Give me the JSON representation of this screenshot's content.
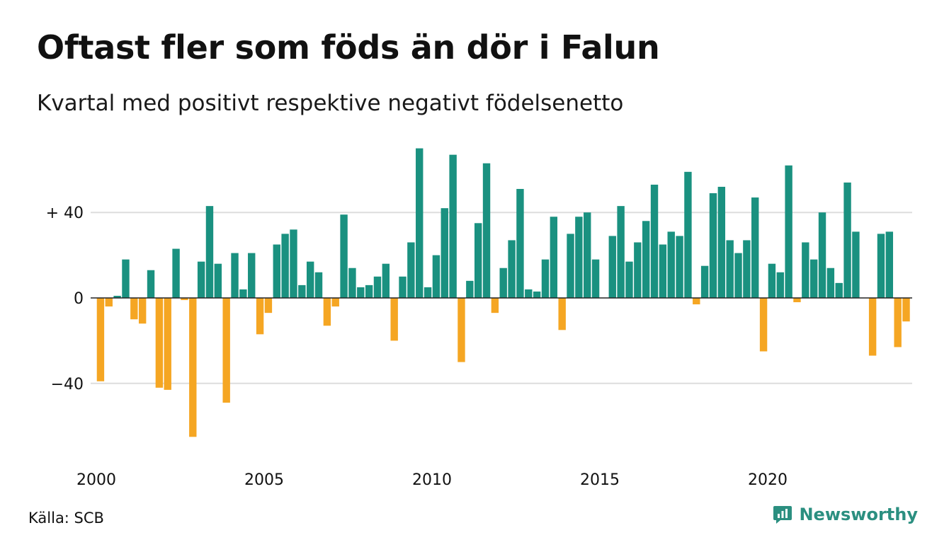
{
  "header": {
    "title": "Oftast fler som föds än dör i Falun",
    "subtitle": "Kvartal med positivt respektive negativt födelsenetto"
  },
  "footer": {
    "source": "Källa: SCB",
    "brand": "Newsworthy",
    "brand_icon": "newsworthy-logo-icon"
  },
  "colors": {
    "positive": "#1a9180",
    "negative": "#f5a623",
    "grid": "#dddddd",
    "axis": "#222222"
  },
  "chart_data": {
    "type": "bar",
    "title": "Oftast fler som föds än dör i Falun",
    "subtitle": "Kvartal med positivt respektive negativt födelsenetto",
    "x_start": 2000,
    "periods_per_year": 4,
    "x_ticks": [
      2000,
      2005,
      2010,
      2015,
      2020
    ],
    "y_ticks": [
      {
        "value": 40,
        "label": "+ 40"
      },
      {
        "value": 0,
        "label": "0"
      },
      {
        "value": -40,
        "label": "−40"
      }
    ],
    "ylim": [
      -75,
      72
    ],
    "grid": true,
    "values": [
      -39,
      -4,
      1,
      18,
      -10,
      -12,
      13,
      -42,
      -43,
      23,
      -1,
      -65,
      17,
      43,
      16,
      -49,
      21,
      4,
      21,
      -17,
      -7,
      25,
      30,
      32,
      6,
      17,
      12,
      -13,
      -4,
      39,
      14,
      5,
      6,
      10,
      16,
      -20,
      10,
      26,
      70,
      5,
      20,
      42,
      67,
      -30,
      8,
      35,
      63,
      -7,
      14,
      27,
      51,
      4,
      3,
      18,
      38,
      -15,
      30,
      38,
      40,
      18,
      0,
      29,
      43,
      17,
      26,
      36,
      53,
      25,
      31,
      29,
      59,
      -3,
      15,
      49,
      52,
      27,
      21,
      27,
      47,
      -25,
      16,
      12,
      62,
      -2,
      26,
      18,
      40,
      14,
      7,
      54,
      31,
      0,
      -27,
      30,
      31,
      -23,
      -11
    ]
  }
}
